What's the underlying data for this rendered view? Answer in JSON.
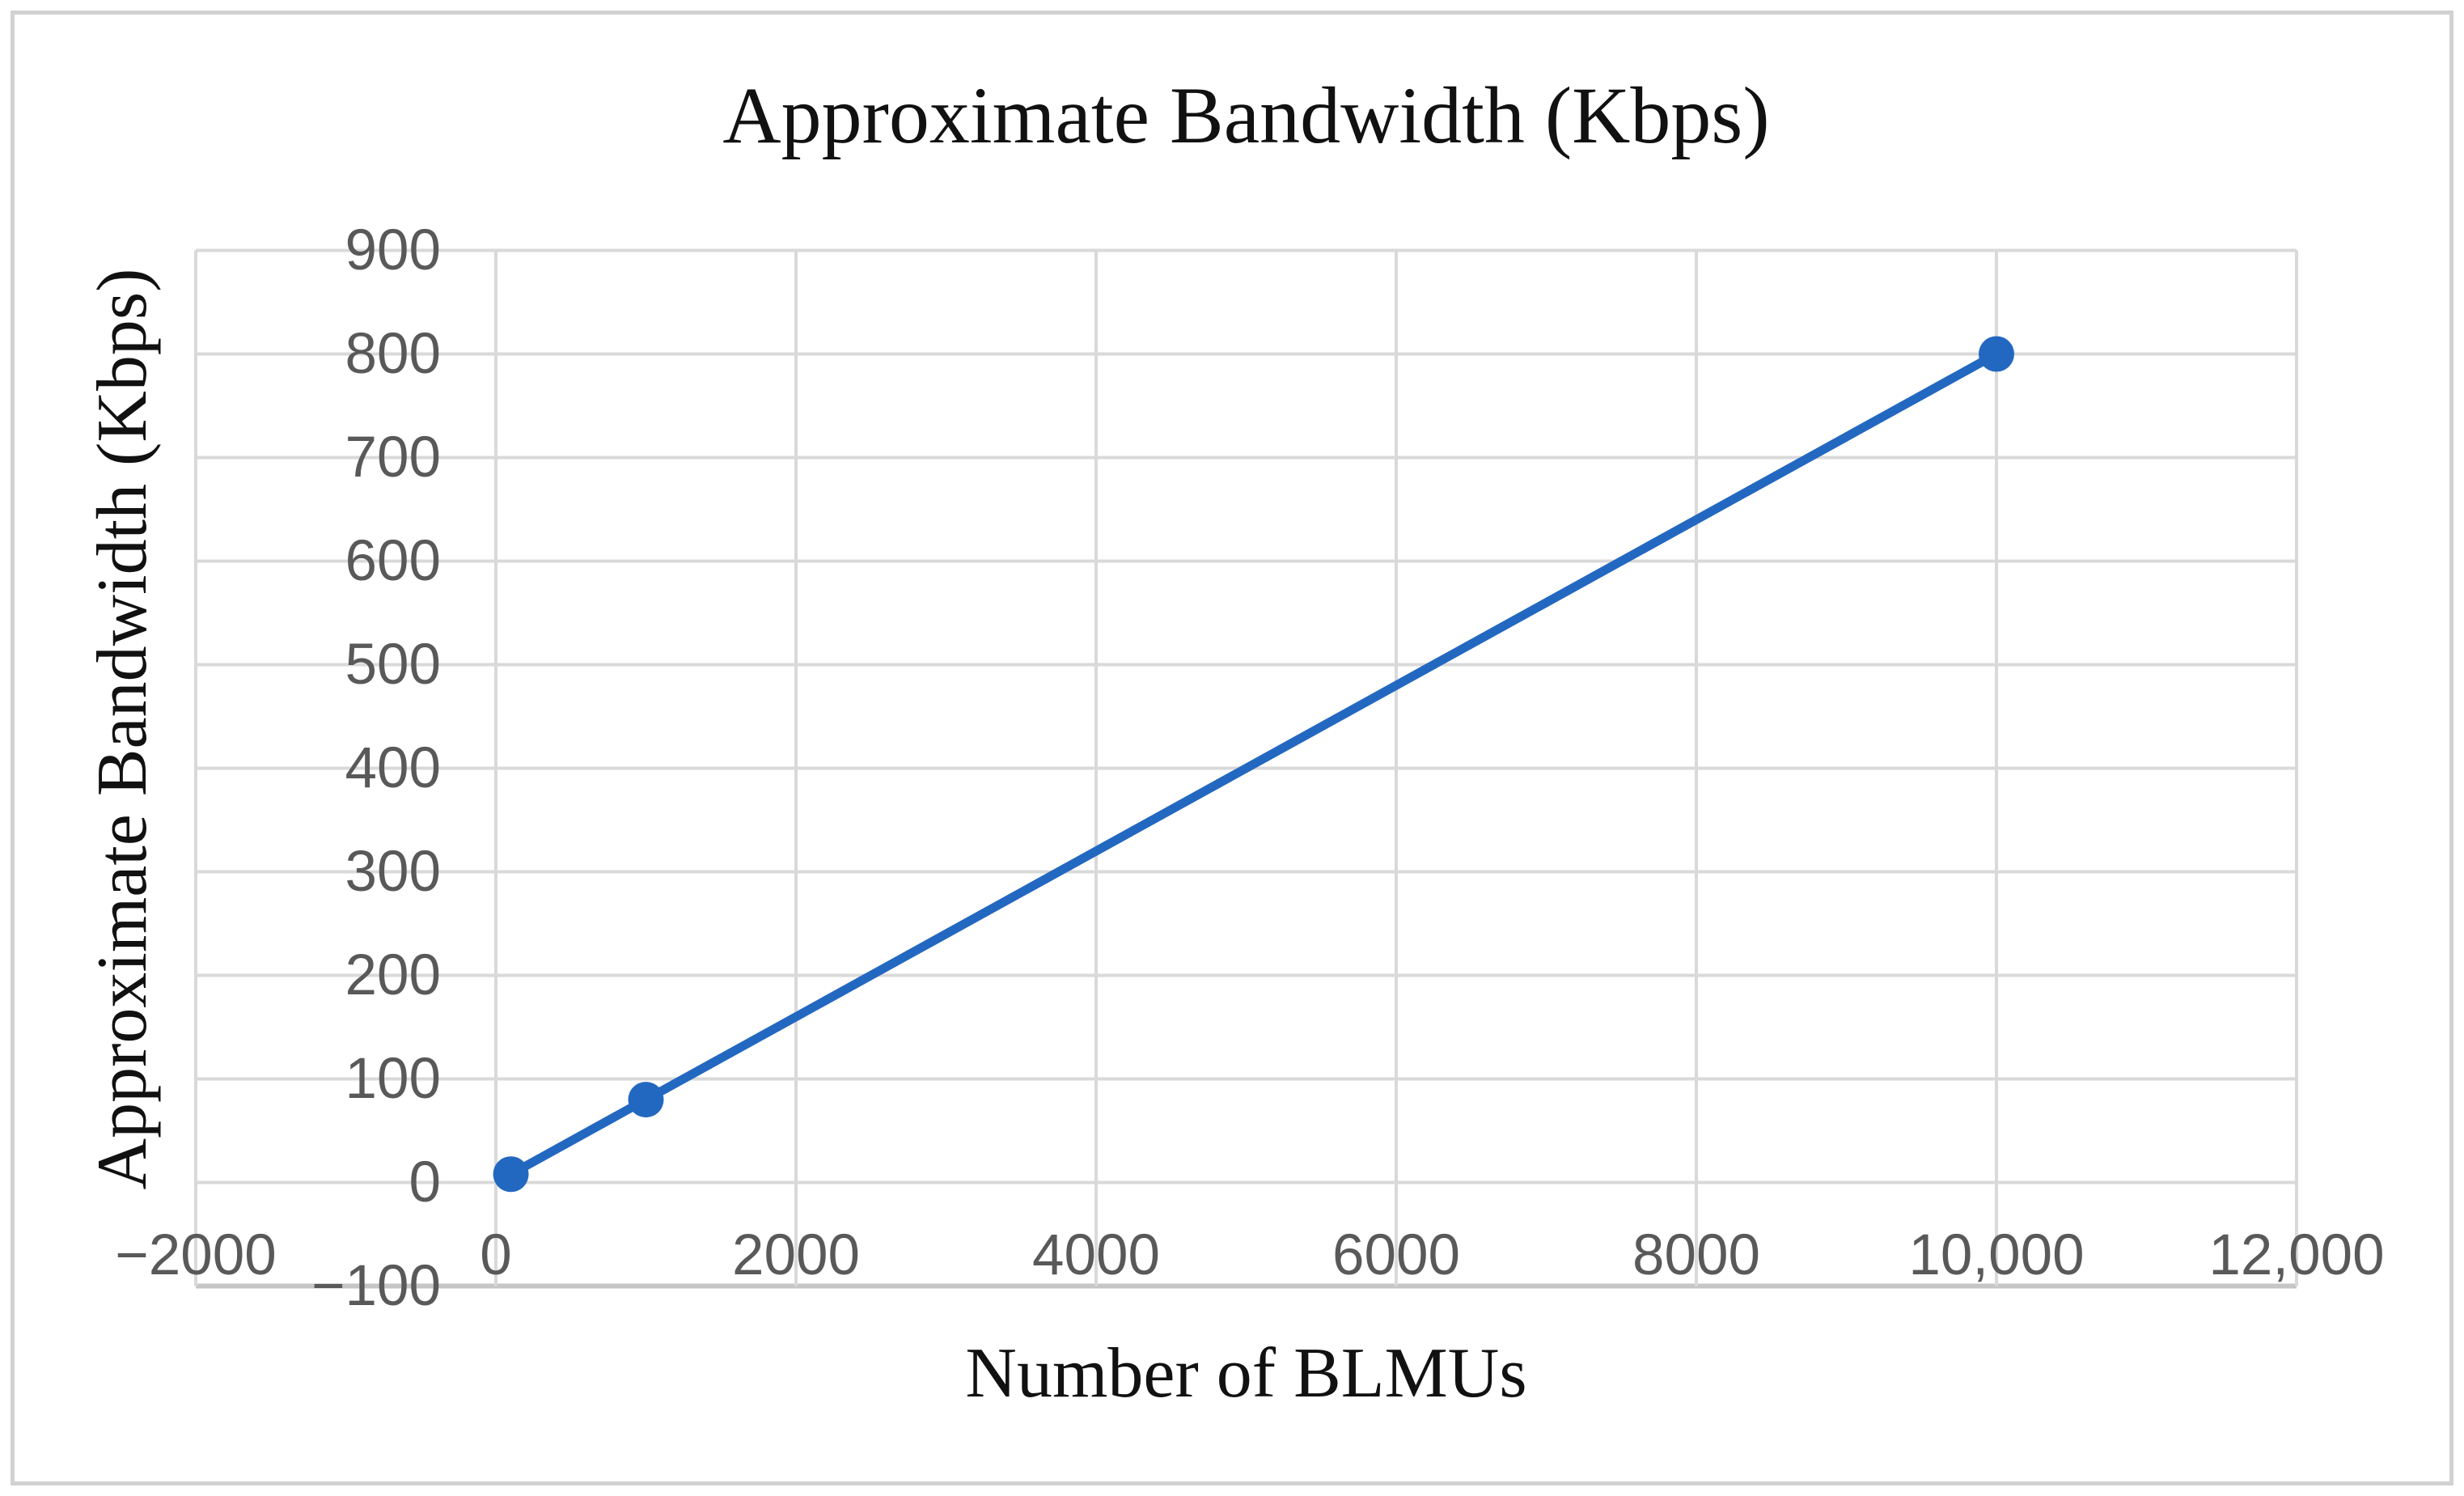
{
  "figure": {
    "background": "#ffffff",
    "frame_color": "#d2d2d2"
  },
  "chart_data": {
    "type": "line",
    "title": "Approximate Bandwidth (Kbps)",
    "xlabel": "Number of BLMUs",
    "ylabel": "Approximate Bandwidth (Kbps)",
    "xlim": [
      -2000,
      12000
    ],
    "ylim": [
      -100,
      900
    ],
    "grid": true,
    "legend": "none",
    "gridline_color": "#d9d9d9",
    "axis_line_color": "#c6c6c6",
    "tick_label_color": "#595959",
    "x_ticks": [
      {
        "value": -2000,
        "label": "−2000"
      },
      {
        "value": 0,
        "label": "0"
      },
      {
        "value": 2000,
        "label": "2000"
      },
      {
        "value": 4000,
        "label": "4000"
      },
      {
        "value": 6000,
        "label": "6000"
      },
      {
        "value": 8000,
        "label": "8000"
      },
      {
        "value": 10000,
        "label": "10,000"
      },
      {
        "value": 12000,
        "label": "12,000"
      }
    ],
    "y_ticks": [
      {
        "value": 900,
        "label": "900"
      },
      {
        "value": 800,
        "label": "800"
      },
      {
        "value": 700,
        "label": "700"
      },
      {
        "value": 600,
        "label": "600"
      },
      {
        "value": 500,
        "label": "500"
      },
      {
        "value": 400,
        "label": "400"
      },
      {
        "value": 300,
        "label": "300"
      },
      {
        "value": 200,
        "label": "200"
      },
      {
        "value": 100,
        "label": "100"
      },
      {
        "value": 0,
        "label": "0"
      },
      {
        "value": -100,
        "label": "−100"
      }
    ],
    "series": [
      {
        "name": "Approximate Bandwidth (Kbps)",
        "color": "#2368c0",
        "marker": "circle",
        "line_width": 11,
        "marker_radius": 22,
        "points": [
          {
            "x": 100,
            "y": 8
          },
          {
            "x": 1000,
            "y": 80
          },
          {
            "x": 10000,
            "y": 800
          }
        ]
      }
    ]
  }
}
